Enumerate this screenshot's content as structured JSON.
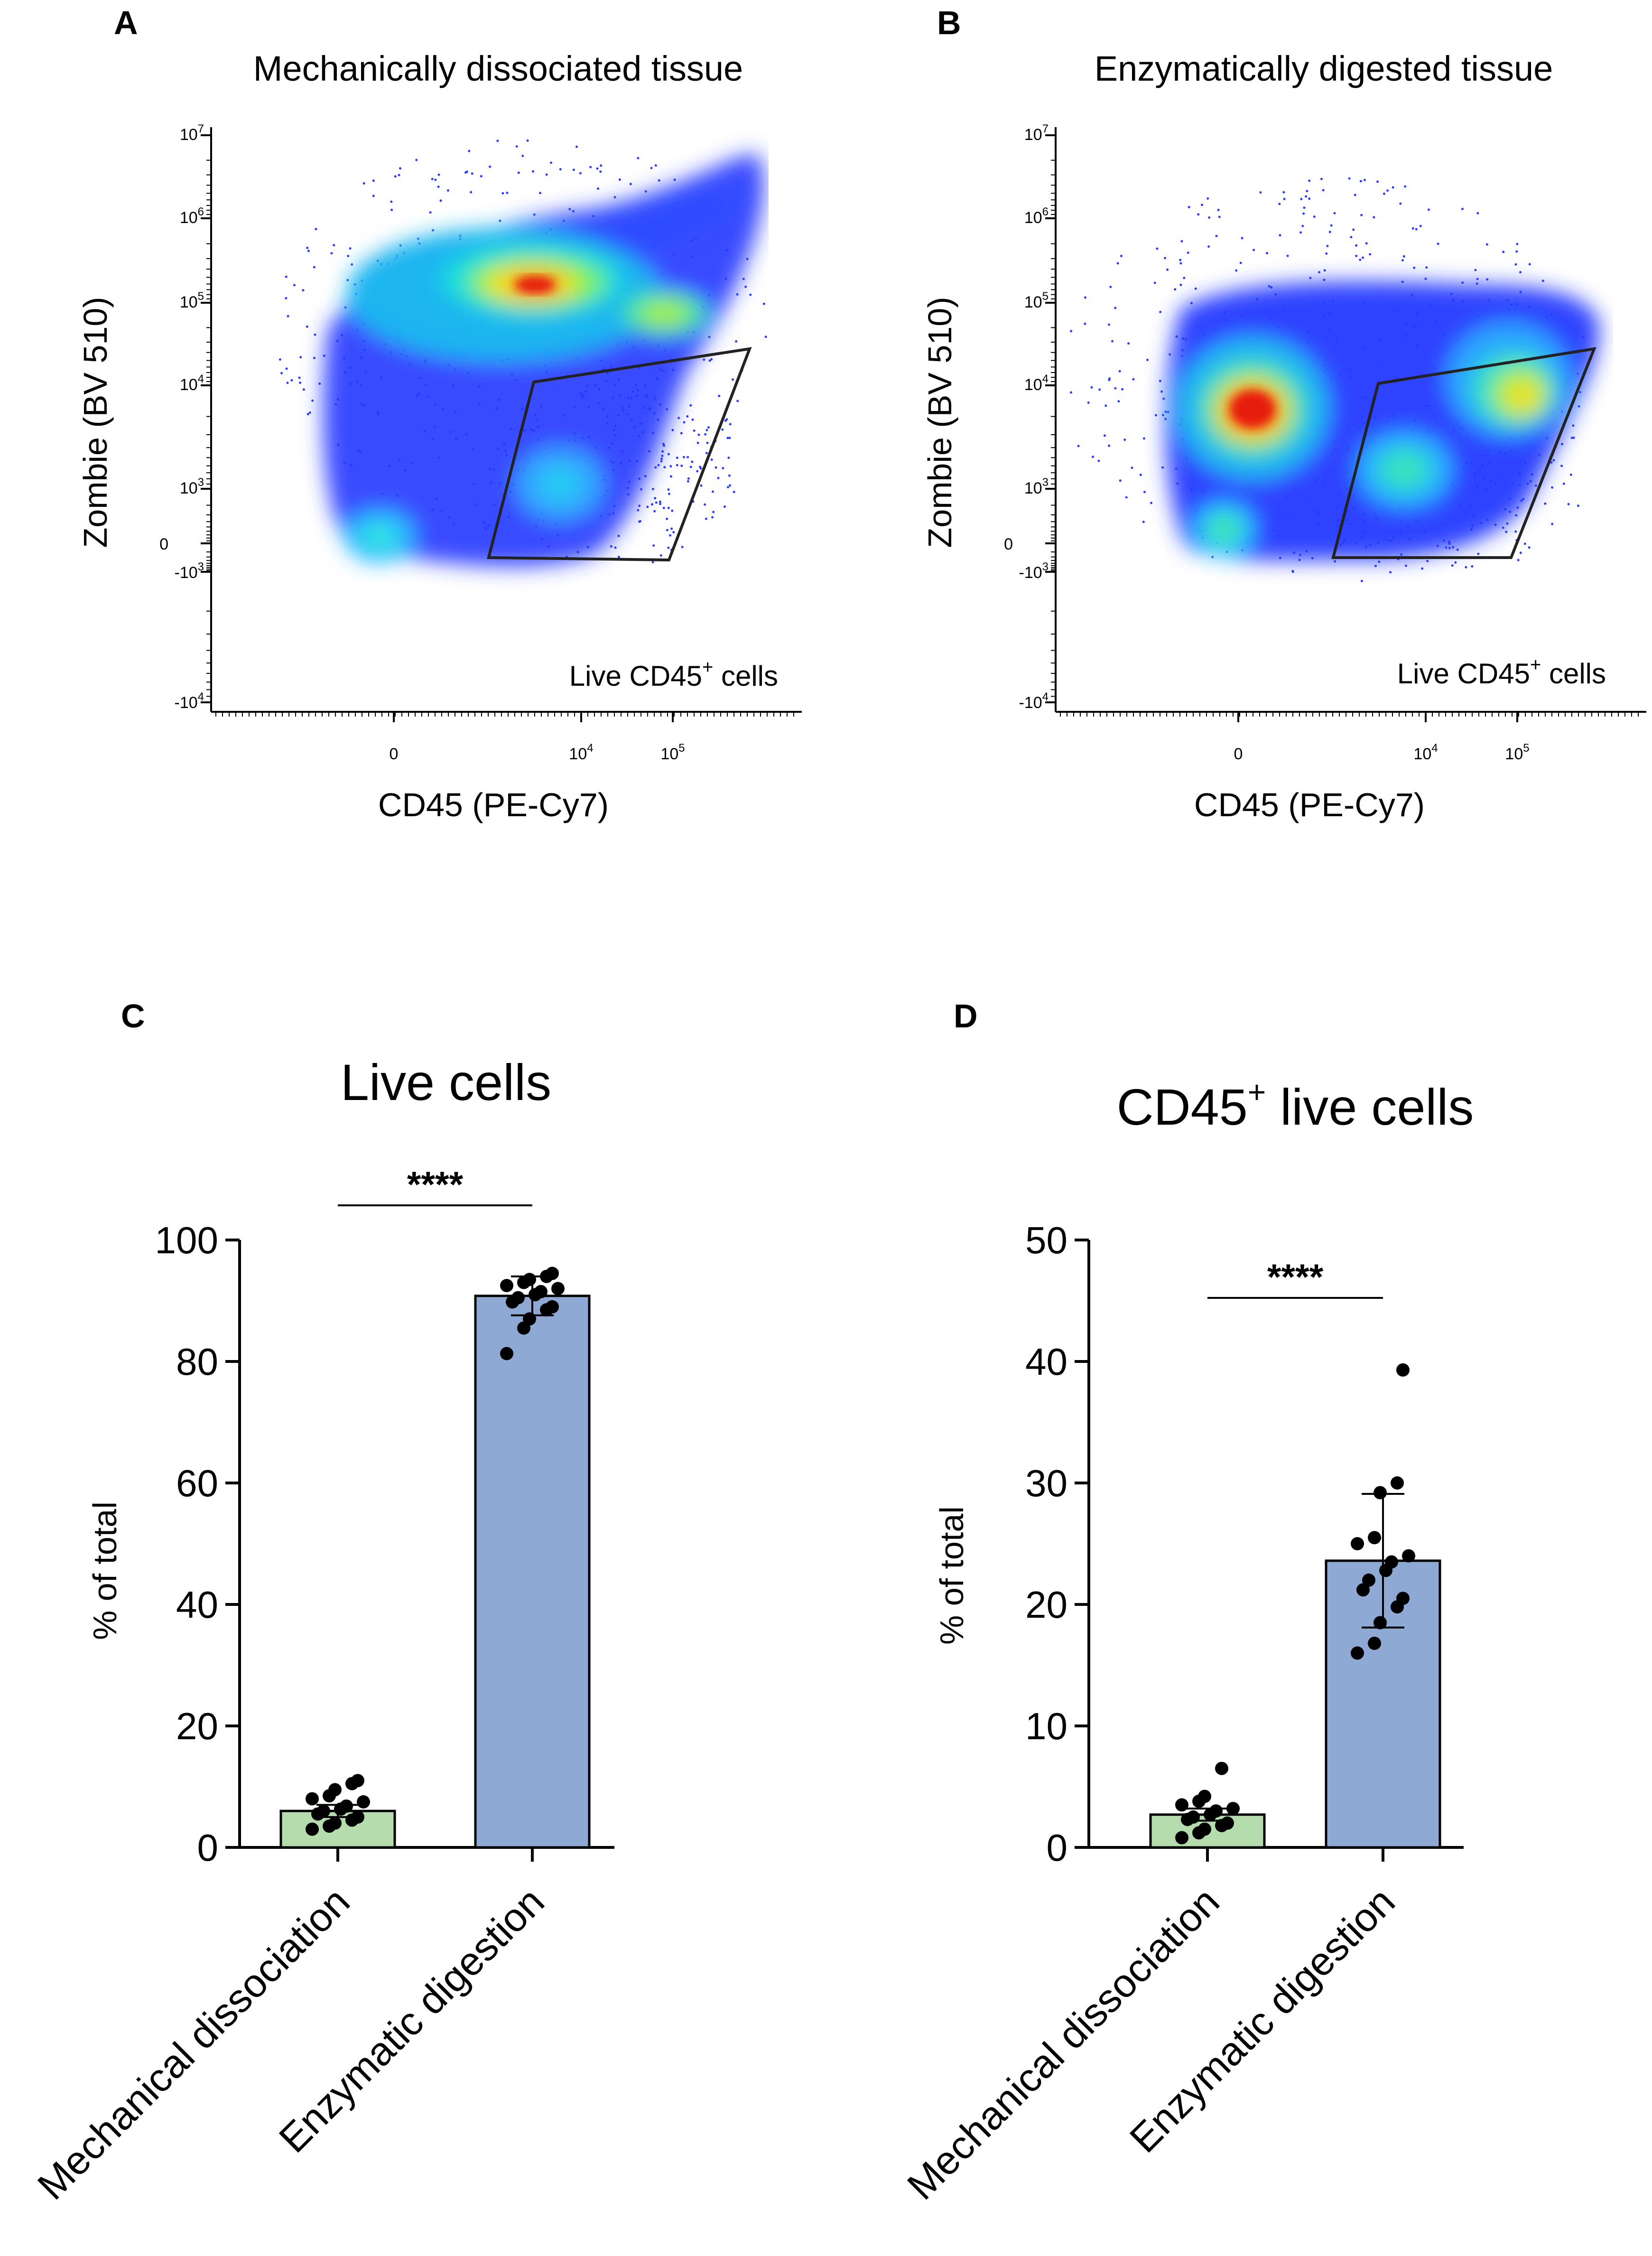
{
  "flow_panels": [
    {
      "panel_label": "A",
      "title": "Mechanically dissociated tissue",
      "x_axis_label": "CD45 (PE-Cy7)",
      "y_axis_label": "Zombie (BV 510)",
      "x_ticks": [
        {
          "base": "0",
          "exp": ""
        },
        {
          "base": "10",
          "exp": "4"
        },
        {
          "base": "10",
          "exp": "5"
        }
      ],
      "y_ticks": [
        {
          "base": "10",
          "exp": "7"
        },
        {
          "base": "10",
          "exp": "6"
        },
        {
          "base": "10",
          "exp": "5"
        },
        {
          "base": "10",
          "exp": "4"
        },
        {
          "base": "10",
          "exp": "3"
        },
        {
          "base": "0",
          "exp": ""
        },
        {
          "base": "-10",
          "exp": "3"
        },
        {
          "base": "-10",
          "exp": "4"
        }
      ],
      "gate_label": {
        "text": "Live CD45",
        "sup": "+",
        "suffix": " cells"
      }
    },
    {
      "panel_label": "B",
      "title": "Enzymatically digested tissue",
      "x_axis_label": "CD45 (PE-Cy7)",
      "y_axis_label": "Zombie (BV 510)",
      "x_ticks": [
        {
          "base": "0",
          "exp": ""
        },
        {
          "base": "10",
          "exp": "4"
        },
        {
          "base": "10",
          "exp": "5"
        }
      ],
      "y_ticks": [
        {
          "base": "10",
          "exp": "7"
        },
        {
          "base": "10",
          "exp": "6"
        },
        {
          "base": "10",
          "exp": "5"
        },
        {
          "base": "10",
          "exp": "4"
        },
        {
          "base": "10",
          "exp": "3"
        },
        {
          "base": "0",
          "exp": ""
        },
        {
          "base": "-10",
          "exp": "3"
        },
        {
          "base": "-10",
          "exp": "4"
        }
      ],
      "gate_label": {
        "text": "Live CD45",
        "sup": "+",
        "suffix": " cells"
      }
    }
  ],
  "colors": {
    "mechanical_bar": "#b5dcac",
    "enzymatic_bar": "#8eaad4",
    "gate_line": "#222222",
    "density_low": "#1a2cff",
    "density_high": "#e61e10"
  },
  "chart_data": [
    {
      "type": "scatter",
      "panel": "A",
      "title": "Mechanically dissociated tissue",
      "xlabel": "CD45 (PE-Cy7)",
      "ylabel": "Zombie (BV 510)",
      "note": "flow cytometry density plot; gated population labeled Live CD45+ cells"
    },
    {
      "type": "scatter",
      "panel": "B",
      "title": "Enzymatically digested tissue",
      "xlabel": "CD45 (PE-Cy7)",
      "ylabel": "Zombie (BV 510)",
      "note": "flow cytometry density plot; gated population labeled Live CD45+ cells"
    },
    {
      "type": "bar",
      "panel": "C",
      "title": "Live cells",
      "title_sup": "",
      "ylabel": "% of total",
      "ylim": [
        0,
        100
      ],
      "yticks": [
        0,
        20,
        40,
        60,
        80,
        100
      ],
      "categories": [
        "Mechanical dissociation",
        "Enzymatic digestion"
      ],
      "values": [
        6.0,
        90.8
      ],
      "error": [
        1.0,
        3.2
      ],
      "points": [
        [
          3.0,
          3.5,
          4.0,
          4.5,
          5.0,
          5.5,
          6.0,
          6.3,
          6.8,
          7.5,
          8.0,
          8.5,
          9.5,
          10.5,
          11.0
        ],
        [
          81.3,
          85.5,
          87.0,
          88.5,
          89.0,
          89.8,
          90.5,
          91.0,
          91.5,
          92.0,
          92.5,
          93.0,
          93.5,
          94.0,
          94.5
        ]
      ],
      "significance": "****"
    },
    {
      "type": "bar",
      "panel": "D",
      "title": "CD45",
      "title_sup": "+",
      "title_suffix": " live cells",
      "ylabel": "% of total",
      "ylim": [
        0,
        50
      ],
      "yticks": [
        0,
        10,
        20,
        30,
        40,
        50
      ],
      "categories": [
        "Mechanical dissociation",
        "Enzymatic digestion"
      ],
      "values": [
        2.7,
        23.6
      ],
      "error": [
        0.5,
        5.5
      ],
      "points": [
        [
          0.8,
          1.2,
          1.5,
          1.8,
          2.0,
          2.3,
          2.5,
          2.7,
          3.0,
          3.2,
          3.5,
          3.8,
          4.2,
          6.5
        ],
        [
          16.0,
          16.8,
          18.5,
          19.8,
          20.5,
          21.2,
          22.0,
          22.8,
          23.5,
          24.0,
          25.0,
          25.5,
          29.2,
          30.0,
          39.3
        ]
      ],
      "significance": "****"
    }
  ]
}
